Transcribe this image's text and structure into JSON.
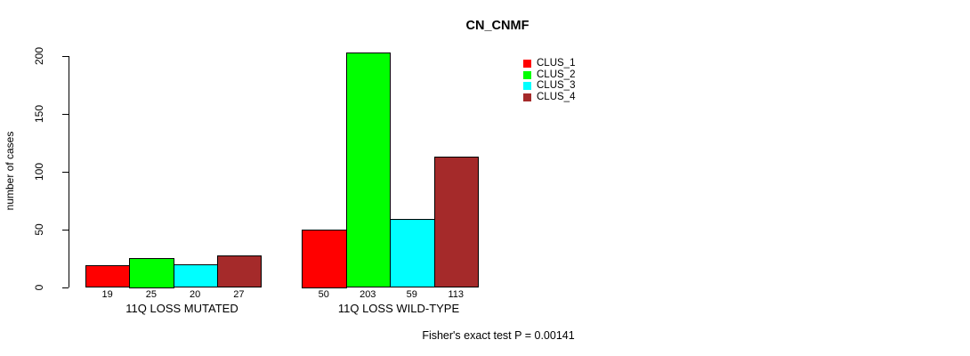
{
  "chart_data": {
    "type": "bar",
    "title": "CN_CNMF",
    "xlabel": "",
    "ylabel": "number of cases",
    "ylim": [
      0,
      200
    ],
    "yticks": [
      0,
      50,
      100,
      150,
      200
    ],
    "grid": false,
    "legend_position": "top-right",
    "bar_value_labels_shown": true,
    "categories": [
      "11Q LOSS MUTATED",
      "11Q LOSS WILD-TYPE"
    ],
    "series": [
      {
        "name": "CLUS_1",
        "color": "#ff0000",
        "values": [
          19,
          50
        ]
      },
      {
        "name": "CLUS_2",
        "color": "#00ff00",
        "values": [
          25,
          203
        ]
      },
      {
        "name": "CLUS_3",
        "color": "#00ffff",
        "values": [
          20,
          59
        ]
      },
      {
        "name": "CLUS_4",
        "color": "#a52a2a",
        "values": [
          27,
          113
        ]
      }
    ],
    "annotation": "Fisher's exact test P = 0.00141"
  }
}
